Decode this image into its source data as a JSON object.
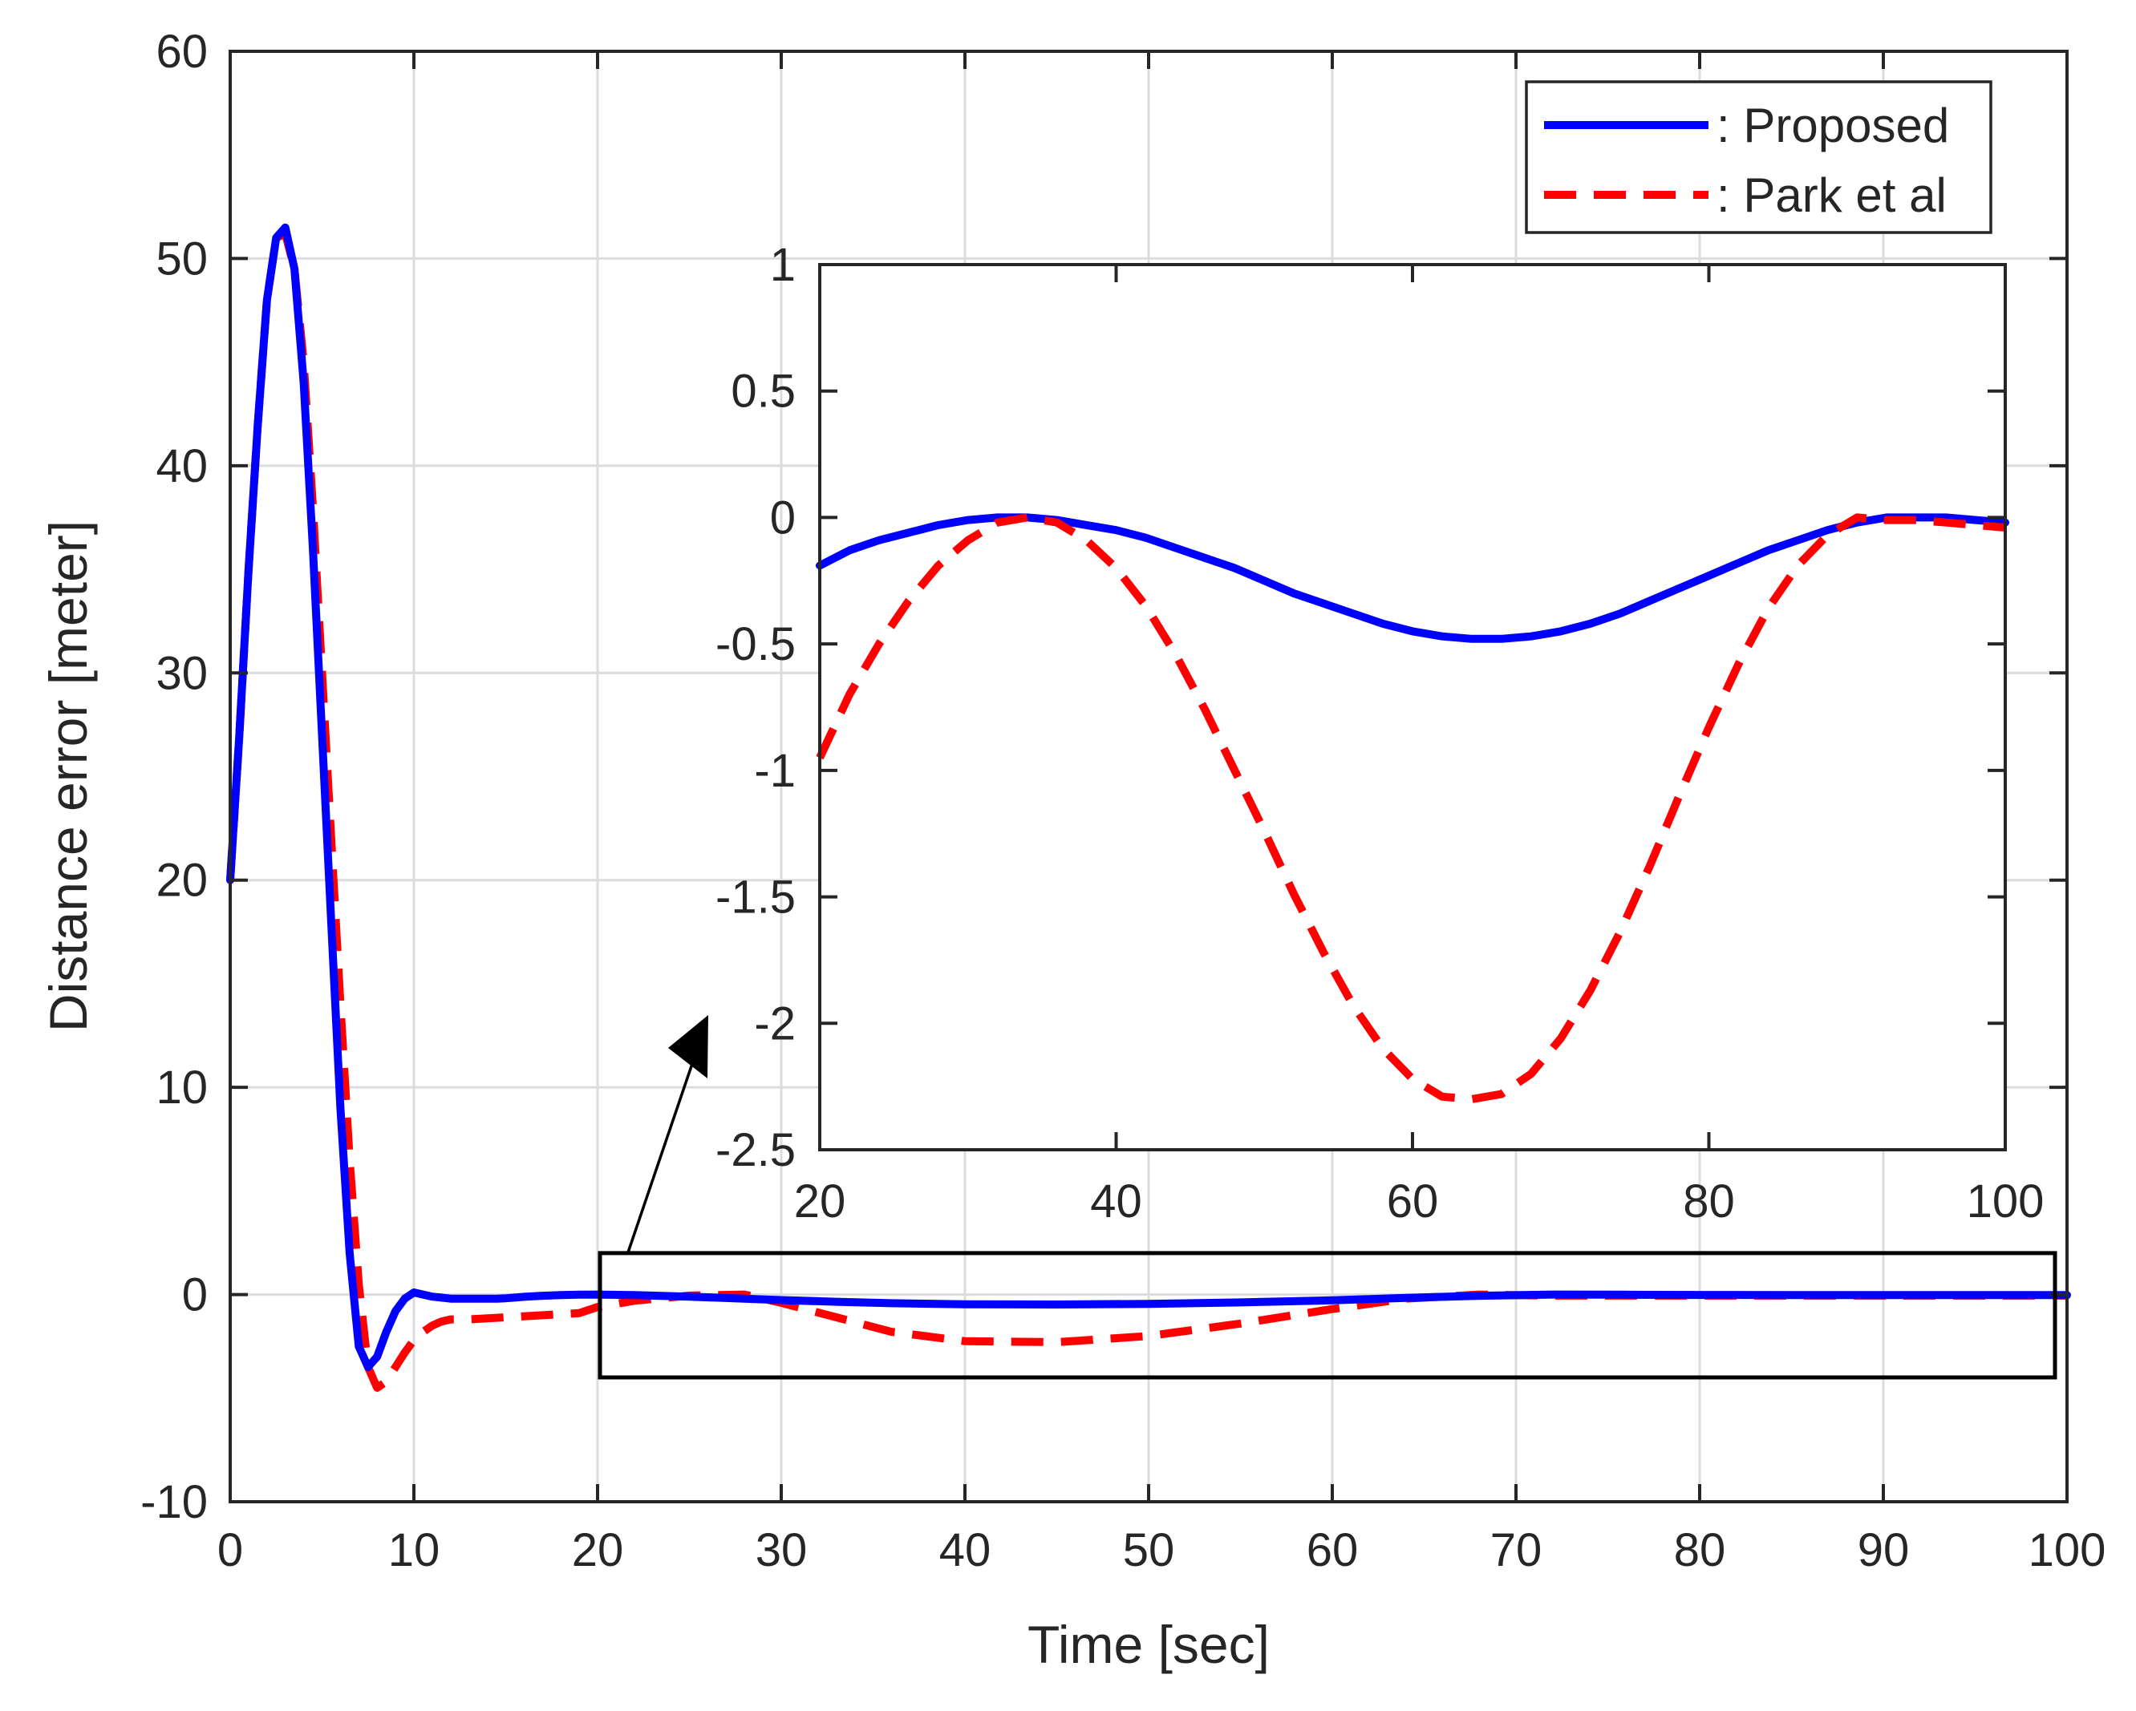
{
  "chart_data": [
    {
      "id": "main",
      "type": "line",
      "title": "",
      "xlabel": "Time [sec]",
      "ylabel": "Distance error [meter]",
      "xlim": [
        0,
        100
      ],
      "ylim": [
        -10,
        60
      ],
      "xticks": [
        0,
        10,
        20,
        30,
        40,
        50,
        60,
        70,
        80,
        90,
        100
      ],
      "yticks": [
        -10,
        0,
        10,
        20,
        30,
        40,
        50,
        60
      ],
      "grid": true,
      "legend_position": "top-right",
      "series": [
        {
          "name": ": Proposed",
          "color": "#0000ff",
          "style": "solid",
          "x": [
            0,
            0.5,
            1,
            1.5,
            2,
            2.5,
            3,
            3.5,
            4,
            4.5,
            5,
            5.5,
            6,
            6.5,
            7,
            7.5,
            8,
            8.5,
            9,
            9.5,
            10,
            10.5,
            11,
            11.5,
            12,
            12.5,
            13,
            13.5,
            14,
            14.5,
            15,
            16,
            17,
            18,
            19,
            20,
            22,
            25,
            28,
            30,
            33,
            36,
            40,
            45,
            50,
            55,
            60,
            64,
            68,
            72,
            76,
            80,
            85,
            90,
            94,
            96,
            98,
            100
          ],
          "y": [
            20,
            27,
            35,
            42,
            48,
            51,
            51.5,
            49.5,
            44,
            36,
            27,
            18,
            9,
            2,
            -2.5,
            -3.5,
            -3,
            -1.8,
            -0.8,
            -0.2,
            0.1,
            0,
            -0.1,
            -0.15,
            -0.2,
            -0.2,
            -0.2,
            -0.2,
            -0.2,
            -0.2,
            -0.18,
            -0.11,
            -0.06,
            -0.03,
            -0.01,
            0,
            -0.03,
            -0.1,
            -0.2,
            -0.27,
            -0.35,
            -0.42,
            -0.47,
            -0.48,
            -0.45,
            -0.38,
            -0.28,
            -0.16,
            -0.06,
            0,
            -0.01,
            -0.02,
            -0.03,
            -0.03,
            -0.03,
            -0.03,
            -0.03,
            -0.03
          ]
        },
        {
          "name": ": Park et al",
          "color": "#ff0000",
          "style": "dashed",
          "x": [
            0,
            0.5,
            1,
            1.5,
            2,
            2.5,
            3,
            3.5,
            4,
            4.5,
            5,
            5.5,
            6,
            6.5,
            7,
            7.5,
            8,
            8.5,
            9,
            9.5,
            10,
            10.5,
            11,
            11.5,
            12,
            12.5,
            13,
            14,
            15,
            16,
            17,
            18,
            19,
            20,
            22,
            25,
            28,
            30,
            33,
            36,
            40,
            45,
            50,
            55,
            60,
            64,
            68,
            72,
            76,
            80,
            85,
            90,
            94,
            96,
            98,
            100
          ],
          "y": [
            20,
            27,
            35,
            42,
            48,
            51,
            51.2,
            49.5,
            45,
            38,
            30,
            22,
            14,
            6.5,
            0.5,
            -3.5,
            -4.5,
            -4.2,
            -3.5,
            -2.8,
            -2.2,
            -1.8,
            -1.5,
            -1.3,
            -1.2,
            -1.2,
            -1.2,
            -1.15,
            -1.1,
            -1.05,
            -1.0,
            -0.95,
            -0.9,
            -0.6,
            -0.3,
            -0.05,
            0,
            -0.4,
            -1.1,
            -1.8,
            -2.25,
            -2.3,
            -2.0,
            -1.4,
            -0.7,
            -0.2,
            0,
            -0.05,
            -0.05,
            -0.05,
            -0.05,
            -0.05,
            -0.05,
            -0.05,
            -0.05,
            -0.05
          ]
        }
      ],
      "zoom_box": {
        "xlim": [
          20,
          100
        ],
        "ylim": [
          -4,
          2
        ]
      }
    },
    {
      "id": "inset",
      "type": "line",
      "title": "",
      "xlabel": "",
      "ylabel": "",
      "xlim": [
        20,
        100
      ],
      "ylim": [
        -2.5,
        1
      ],
      "xticks": [
        20,
        40,
        60,
        80,
        100
      ],
      "yticks": [
        -2.5,
        -2,
        -1.5,
        -1,
        -0.5,
        0,
        0.5,
        1
      ],
      "grid": false,
      "series": [
        {
          "name": ": Proposed",
          "color": "#0000ff",
          "style": "solid",
          "x": [
            20,
            22,
            24,
            26,
            28,
            30,
            32,
            34,
            36,
            38,
            40,
            42,
            44,
            46,
            48,
            50,
            52,
            54,
            56,
            58,
            60,
            62,
            64,
            66,
            68,
            70,
            72,
            74,
            76,
            78,
            80,
            82,
            84,
            86,
            88,
            90,
            92,
            94,
            96,
            98,
            100
          ],
          "y": [
            -0.19,
            -0.13,
            -0.09,
            -0.06,
            -0.03,
            -0.01,
            0,
            0,
            -0.01,
            -0.03,
            -0.05,
            -0.08,
            -0.12,
            -0.16,
            -0.2,
            -0.25,
            -0.3,
            -0.34,
            -0.38,
            -0.42,
            -0.45,
            -0.47,
            -0.48,
            -0.48,
            -0.47,
            -0.45,
            -0.42,
            -0.38,
            -0.33,
            -0.28,
            -0.23,
            -0.18,
            -0.13,
            -0.09,
            -0.05,
            -0.02,
            0,
            0,
            0,
            -0.01,
            -0.02
          ]
        },
        {
          "name": ": Park et al",
          "color": "#ff0000",
          "style": "dashed",
          "x": [
            20,
            22,
            24,
            26,
            28,
            30,
            32,
            34,
            36,
            38,
            40,
            42,
            44,
            46,
            48,
            50,
            52,
            54,
            56,
            58,
            60,
            62,
            64,
            66,
            68,
            70,
            72,
            74,
            76,
            78,
            80,
            82,
            84,
            86,
            88,
            90,
            92,
            94,
            96,
            98,
            100
          ],
          "y": [
            -0.95,
            -0.7,
            -0.5,
            -0.33,
            -0.19,
            -0.09,
            -0.02,
            0,
            -0.02,
            -0.09,
            -0.2,
            -0.35,
            -0.54,
            -0.76,
            -1.0,
            -1.24,
            -1.49,
            -1.72,
            -1.93,
            -2.1,
            -2.22,
            -2.29,
            -2.3,
            -2.28,
            -2.2,
            -2.06,
            -1.87,
            -1.64,
            -1.38,
            -1.1,
            -0.83,
            -0.58,
            -0.36,
            -0.19,
            -0.07,
            0,
            -0.01,
            -0.01,
            -0.02,
            -0.03,
            -0.04
          ]
        }
      ]
    }
  ]
}
